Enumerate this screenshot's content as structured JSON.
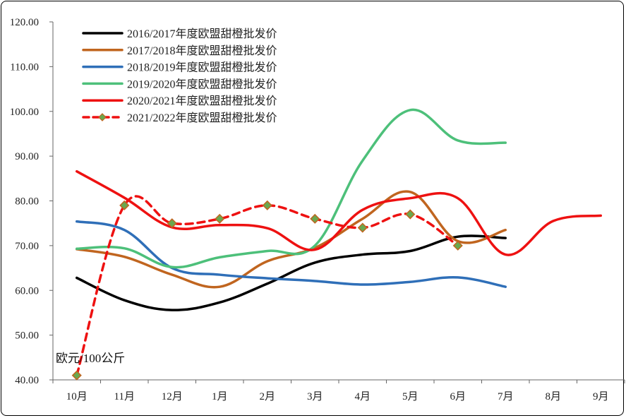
{
  "chart_data": {
    "type": "line",
    "title": "",
    "ylabel": "欧元/100公斤",
    "xlabel": "",
    "ylim": [
      40,
      120
    ],
    "yticks": [
      "40.00",
      "50.00",
      "60.00",
      "70.00",
      "80.00",
      "90.00",
      "100.00",
      "110.00",
      "120.00"
    ],
    "categories": [
      "10月",
      "11月",
      "12月",
      "1月",
      "2月",
      "3月",
      "4月",
      "5月",
      "6月",
      "7月",
      "8月",
      "9月"
    ],
    "legend_position": "top-left",
    "grid": false,
    "series": [
      {
        "name": "2016/2017年度欧盟甜橙批发价",
        "color": "#000000",
        "dashed": false,
        "markers": false,
        "values": [
          62.8,
          57.8,
          55.6,
          57.3,
          61.5,
          66.2,
          68.0,
          68.8,
          72.0,
          71.7,
          null,
          null
        ]
      },
      {
        "name": "2017/2018年度欧盟甜橙批发价",
        "color": "#C0651F",
        "dashed": false,
        "markers": false,
        "values": [
          69.2,
          67.5,
          63.5,
          60.8,
          66.5,
          69.5,
          76.0,
          82.0,
          71.0,
          73.5,
          null,
          null
        ]
      },
      {
        "name": "2018/2019年度欧盟甜橙批发价",
        "color": "#2F6FB8",
        "dashed": false,
        "markers": false,
        "values": [
          75.4,
          73.5,
          65.0,
          63.5,
          62.7,
          62.1,
          61.3,
          61.9,
          62.9,
          60.8,
          null,
          null
        ]
      },
      {
        "name": "2019/2020年度欧盟甜橙批发价",
        "color": "#4DC07A",
        "dashed": false,
        "markers": false,
        "values": [
          69.3,
          69.4,
          65.2,
          67.4,
          68.8,
          70.0,
          89.0,
          100.3,
          93.5,
          93.0,
          null,
          null
        ]
      },
      {
        "name": "2020/2021年度欧盟甜橙批发价",
        "color": "#EE1111",
        "dashed": false,
        "markers": false,
        "values": [
          86.6,
          80.7,
          74.1,
          74.6,
          73.9,
          69.1,
          78.0,
          80.6,
          80.6,
          68.0,
          75.5,
          76.7
        ]
      },
      {
        "name": "2021/2022年度欧盟甜橙批发价",
        "color": "#EE1111",
        "dashed": true,
        "markers": true,
        "marker_color": "#6AA84F",
        "values": [
          41.0,
          79.0,
          75.0,
          76.0,
          79.0,
          76.0,
          74.0,
          77.0,
          70.0,
          null,
          null,
          null
        ]
      }
    ]
  }
}
